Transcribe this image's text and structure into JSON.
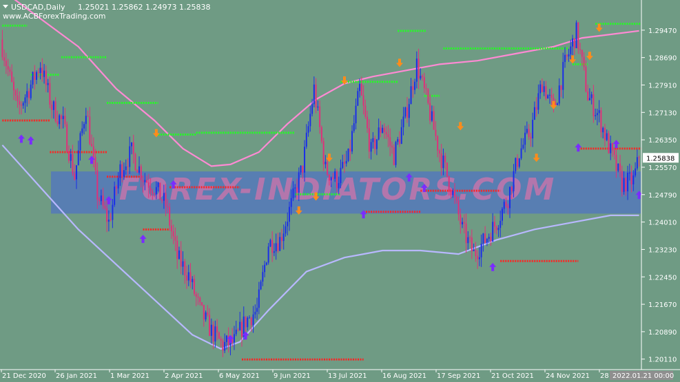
{
  "header": {
    "symbol": "USDCAD,Daily",
    "ohlc": "1.25021 1.25862 1.24973 1.25838",
    "site": "www.ACBForexTrading.com"
  },
  "watermark": "FOREX-INDIATORS.COM",
  "colors": {
    "background": "#6f9b84",
    "bull_candle": "#1a2ee8",
    "bear_candle": "#e0307a",
    "ma_fast": "#ff8ad4",
    "ma_slow": "#b8b8ff",
    "resistance": "#22ff22",
    "support": "#ff2222",
    "arrow_up": "#7a2cff",
    "arrow_down": "#ff8c1a",
    "band": "#4a6ad0"
  },
  "chart_data": {
    "type": "candlestick",
    "ylim": [
      1.1985,
      1.3025
    ],
    "y_ticks": [
      "1.29470",
      "1.28690",
      "1.27910",
      "1.27130",
      "1.26350",
      "1.25570",
      "1.24790",
      "1.24010",
      "1.23230",
      "1.22450",
      "1.21670",
      "1.20890",
      "1.20110"
    ],
    "current_price": "1.25838",
    "x_ticks": [
      "21 Dec 2020",
      "26 Jan 2021",
      "1 Mar 2021",
      "2 Apr 2021",
      "6 May 2021",
      "9 Jun 2021",
      "13 Jul 2021",
      "16 Aug 2021",
      "17 Sep 2021",
      "21 Oct 2021",
      "24 Nov 2021",
      "28"
    ],
    "cursor_date": "2022.01.21 00:00",
    "close_anchors": [
      [
        0,
        1.29
      ],
      [
        8,
        1.272
      ],
      [
        14,
        1.278
      ],
      [
        20,
        1.285
      ],
      [
        26,
        1.273
      ],
      [
        32,
        1.268
      ],
      [
        38,
        1.253
      ],
      [
        44,
        1.273
      ],
      [
        50,
        1.248
      ],
      [
        56,
        1.24
      ],
      [
        62,
        1.255
      ],
      [
        68,
        1.26
      ],
      [
        74,
        1.253
      ],
      [
        80,
        1.25
      ],
      [
        86,
        1.245
      ],
      [
        92,
        1.23
      ],
      [
        98,
        1.225
      ],
      [
        104,
        1.215
      ],
      [
        110,
        1.209
      ],
      [
        116,
        1.205
      ],
      [
        122,
        1.206
      ],
      [
        128,
        1.212
      ],
      [
        134,
        1.215
      ],
      [
        140,
        1.234
      ],
      [
        146,
        1.235
      ],
      [
        152,
        1.245
      ],
      [
        158,
        1.256
      ],
      [
        164,
        1.278
      ],
      [
        170,
        1.255
      ],
      [
        176,
        1.252
      ],
      [
        182,
        1.258
      ],
      [
        188,
        1.278
      ],
      [
        194,
        1.26
      ],
      [
        200,
        1.268
      ],
      [
        206,
        1.259
      ],
      [
        212,
        1.27
      ],
      [
        218,
        1.285
      ],
      [
        224,
        1.273
      ],
      [
        230,
        1.26
      ],
      [
        236,
        1.25
      ],
      [
        242,
        1.238
      ],
      [
        248,
        1.231
      ],
      [
        254,
        1.235
      ],
      [
        260,
        1.24
      ],
      [
        266,
        1.247
      ],
      [
        272,
        1.26
      ],
      [
        278,
        1.266
      ],
      [
        284,
        1.28
      ],
      [
        290,
        1.272
      ],
      [
        296,
        1.285
      ],
      [
        302,
        1.294
      ],
      [
        308,
        1.276
      ],
      [
        314,
        1.27
      ],
      [
        320,
        1.26
      ],
      [
        326,
        1.251
      ],
      [
        332,
        1.252
      ],
      [
        335,
        1.2584
      ]
    ],
    "ma_fast": [
      [
        0,
        1.306
      ],
      [
        20,
        1.298
      ],
      [
        40,
        1.29
      ],
      [
        60,
        1.278
      ],
      [
        80,
        1.269
      ],
      [
        95,
        1.261
      ],
      [
        110,
        1.256
      ],
      [
        120,
        1.2565
      ],
      [
        135,
        1.26
      ],
      [
        150,
        1.268
      ],
      [
        165,
        1.275
      ],
      [
        180,
        1.2795
      ],
      [
        195,
        1.2815
      ],
      [
        210,
        1.283
      ],
      [
        230,
        1.285
      ],
      [
        250,
        1.286
      ],
      [
        270,
        1.288
      ],
      [
        290,
        1.29
      ],
      [
        305,
        1.2925
      ],
      [
        320,
        1.2935
      ],
      [
        335,
        1.2945
      ]
    ],
    "ma_slow": [
      [
        0,
        1.262
      ],
      [
        20,
        1.25
      ],
      [
        40,
        1.238
      ],
      [
        60,
        1.228
      ],
      [
        80,
        1.218
      ],
      [
        100,
        1.208
      ],
      [
        115,
        1.204
      ],
      [
        125,
        1.206
      ],
      [
        140,
        1.215
      ],
      [
        160,
        1.226
      ],
      [
        180,
        1.23
      ],
      [
        200,
        1.232
      ],
      [
        220,
        1.232
      ],
      [
        240,
        1.231
      ],
      [
        260,
        1.235
      ],
      [
        280,
        1.238
      ],
      [
        300,
        1.24
      ],
      [
        320,
        1.242
      ],
      [
        335,
        1.242
      ]
    ],
    "resistance_levels": [
      [
        0,
        13,
        1.296
      ],
      [
        15,
        30,
        1.282
      ],
      [
        31,
        55,
        1.287
      ],
      [
        55,
        82,
        1.274
      ],
      [
        82,
        102,
        1.265
      ],
      [
        102,
        154,
        1.2655
      ],
      [
        154,
        178,
        1.248
      ],
      [
        178,
        208,
        1.28
      ],
      [
        208,
        223,
        1.2945
      ],
      [
        222,
        230,
        1.276
      ],
      [
        232,
        298,
        1.2895
      ],
      [
        300,
        308,
        1.285
      ],
      [
        312,
        340,
        1.2965
      ]
    ],
    "support_levels": [
      [
        0,
        25,
        1.269
      ],
      [
        25,
        55,
        1.26
      ],
      [
        55,
        74,
        1.253
      ],
      [
        74,
        88,
        1.238
      ],
      [
        88,
        125,
        1.25
      ],
      [
        126,
        190,
        1.201
      ],
      [
        190,
        220,
        1.243
      ],
      [
        220,
        262,
        1.249
      ],
      [
        262,
        303,
        1.229
      ],
      [
        303,
        338,
        1.261
      ]
    ],
    "buy_arrows": [
      [
        10,
        1.265
      ],
      [
        15,
        1.2645
      ],
      [
        47,
        1.259
      ],
      [
        56,
        1.2475
      ],
      [
        74,
        1.2365
      ],
      [
        90,
        1.252
      ],
      [
        120,
        1.208
      ],
      [
        128,
        1.209
      ],
      [
        190,
        1.2435
      ],
      [
        214,
        1.254
      ],
      [
        222,
        1.251
      ],
      [
        258,
        1.2285
      ],
      [
        303,
        1.2625
      ],
      [
        323,
        1.2635
      ],
      [
        335,
        1.249
      ]
    ],
    "sell_arrows": [
      [
        81,
        1.263
      ],
      [
        156,
        1.241
      ],
      [
        165,
        1.245
      ],
      [
        172,
        1.256
      ],
      [
        180,
        1.278
      ],
      [
        209,
        1.283
      ],
      [
        241,
        1.265
      ],
      [
        281,
        1.256
      ],
      [
        290,
        1.271
      ],
      [
        300,
        1.284
      ],
      [
        309,
        1.285
      ],
      [
        314,
        1.293
      ]
    ],
    "highlight_band": [
      1.2425,
      1.2545
    ]
  }
}
